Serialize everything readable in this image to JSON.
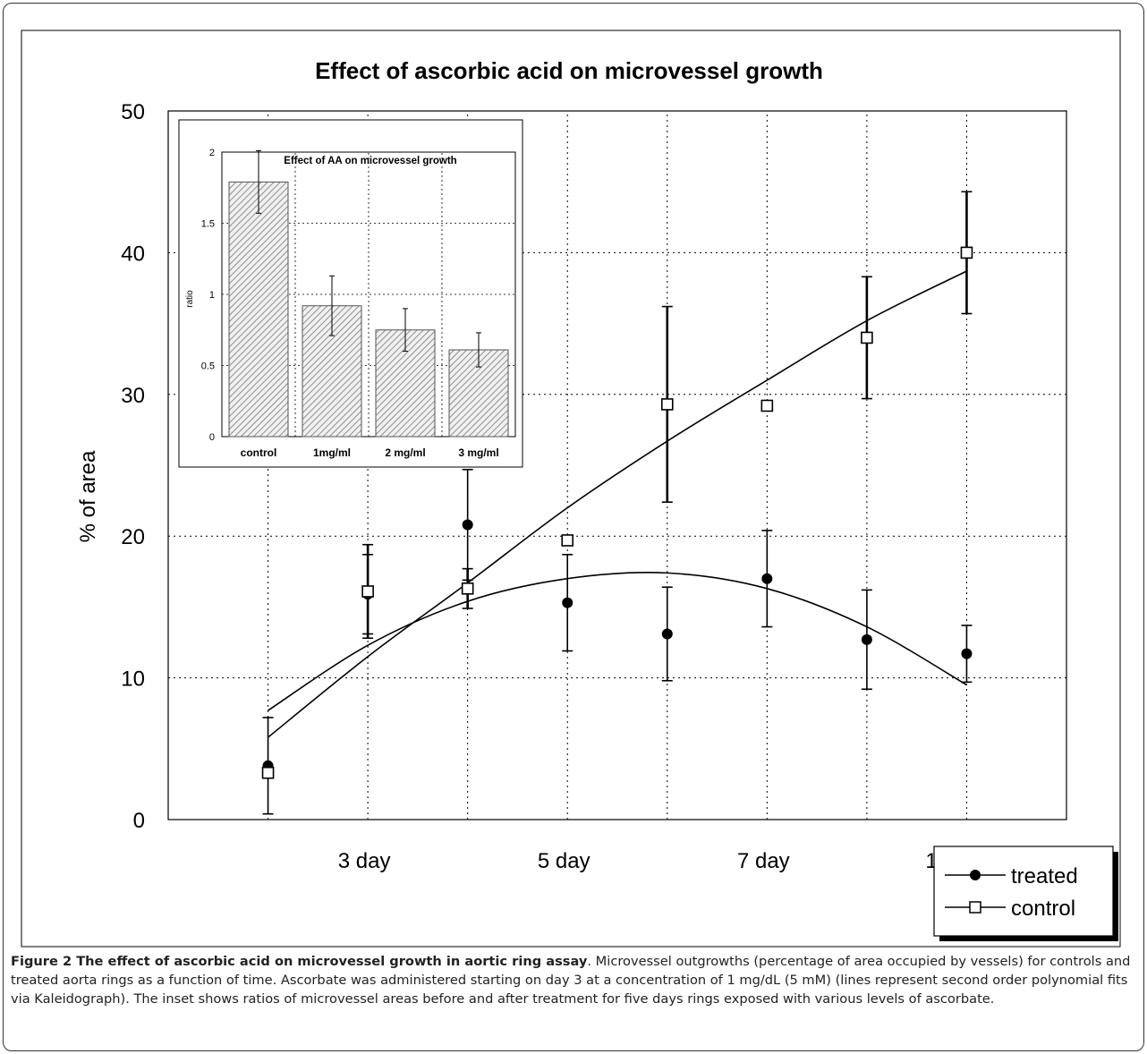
{
  "chart_data": [
    {
      "type": "scatter",
      "title": "Effect of ascorbic acid on microvessel growth",
      "xlabel": "",
      "ylabel": "% of area",
      "ylim": [
        0,
        50
      ],
      "yticks": [
        "0",
        "10",
        "20",
        "30",
        "40",
        "50"
      ],
      "x_positions": [
        1,
        2,
        3,
        4,
        5,
        6,
        7,
        8,
        9
      ],
      "xtick_labels": [
        {
          "x": 2,
          "label": "3 day"
        },
        {
          "x": 4,
          "label": "5 day"
        },
        {
          "x": 6,
          "label": "7 day"
        },
        {
          "x": 8,
          "label": "10 days"
        }
      ],
      "grid": true,
      "legend_position": "bottom-right",
      "series": [
        {
          "name": "treated",
          "marker": "filled-circle",
          "values": [
            3.8,
            15.9,
            20.8,
            15.3,
            13.1,
            17.0,
            12.7,
            11.7
          ],
          "x": [
            1,
            2,
            3,
            4,
            5,
            6,
            7,
            8
          ],
          "error": [
            3.4,
            2.8,
            3.9,
            3.4,
            3.3,
            3.4,
            3.5,
            2.0
          ],
          "fit": [
            [
              1,
              7.7
            ],
            [
              2,
              12.3
            ],
            [
              3,
              15.4
            ],
            [
              4,
              17.0
            ],
            [
              5,
              17.4
            ],
            [
              6,
              16.3
            ],
            [
              7,
              13.6
            ],
            [
              8,
              9.5
            ]
          ]
        },
        {
          "name": "control",
          "marker": "open-square",
          "values": [
            3.3,
            16.1,
            16.3,
            19.7,
            29.3,
            29.2,
            34.0,
            40.0
          ],
          "x": [
            1,
            2,
            3,
            4,
            5,
            6,
            7,
            8
          ],
          "error": [
            0,
            3.3,
            1.4,
            0,
            6.9,
            0,
            4.3,
            4.3
          ],
          "fit": [
            [
              1,
              5.8
            ],
            [
              2,
              11.5
            ],
            [
              3,
              16.7
            ],
            [
              4,
              22.0
            ],
            [
              5,
              26.7
            ],
            [
              6,
              31.0
            ],
            [
              7,
              35.2
            ],
            [
              8,
              38.7
            ]
          ]
        }
      ]
    },
    {
      "type": "bar",
      "title": "Effect of AA on microvessel growth",
      "xlabel": "",
      "ylabel": "ratio",
      "ylim": [
        0,
        2
      ],
      "yticks": [
        "0",
        "0.5",
        "1",
        "1.5",
        "2"
      ],
      "categories": [
        "control",
        "1mg/ml",
        "2 mg/ml",
        "3 mg/ml"
      ],
      "values": [
        1.79,
        0.92,
        0.75,
        0.61
      ],
      "error": [
        0.22,
        0.21,
        0.15,
        0.12
      ],
      "grid": true
    }
  ],
  "caption": {
    "figure_label": "Figure 2 The effect of ascorbic acid on microvessel growth in aortic ring assay",
    "text": ". Microvessel outgrowths (percentage of area occupied by vessels) for controls and treated aorta rings as a function of time. Ascorbate was administered starting on day 3 at a concentration of 1 mg/dL (5 mM) (lines represent second order polynomial fits via Kaleidograph). The inset shows ratios of microvessel areas before and after treatment for five days rings exposed with various levels of ascorbate."
  }
}
